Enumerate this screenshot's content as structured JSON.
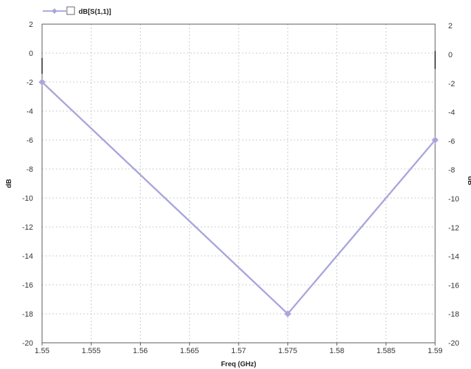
{
  "chart_data": {
    "type": "line",
    "x": [
      1.55,
      1.575,
      1.59
    ],
    "series": [
      {
        "name": "dB[S(1,1)]",
        "values": [
          -2,
          -18,
          -6
        ],
        "color": "#aaa6dc"
      }
    ],
    "xlabel": "Freq (GHz)",
    "ylabel_left": "dB",
    "ylabel_right": "dB",
    "xlim": [
      1.55,
      1.59
    ],
    "ylim": [
      -20,
      2
    ],
    "xticks": [
      "1.55",
      "1.555",
      "1.56",
      "1.565",
      "1.57",
      "1.575",
      "1.58",
      "1.585",
      "1.59"
    ],
    "yticks": [
      "2",
      "0",
      "-2",
      "-4",
      "-6",
      "-8",
      "-10",
      "-12",
      "-14",
      "-16",
      "-18",
      "-20"
    ],
    "grid": true,
    "legend_position": "top-left",
    "legend_checkbox_checked": false,
    "gridline_color": "#c8c8c8",
    "axis_color": "#555555"
  }
}
